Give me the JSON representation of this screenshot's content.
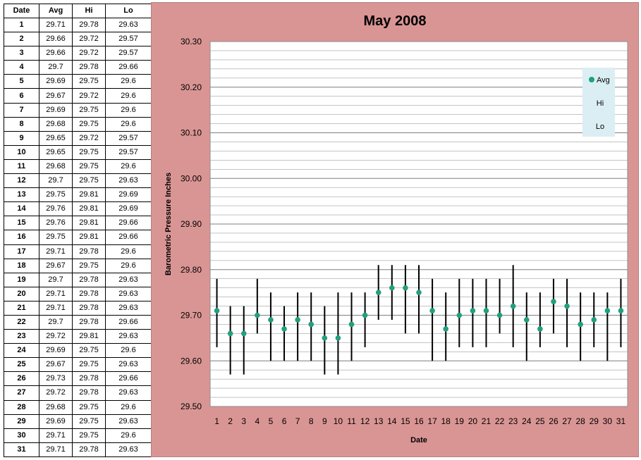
{
  "table": {
    "headers": [
      "Date",
      "Avg",
      "Hi",
      "Lo"
    ],
    "rows": [
      [
        "1",
        "29.71",
        "29.78",
        "29.63"
      ],
      [
        "2",
        "29.66",
        "29.72",
        "29.57"
      ],
      [
        "3",
        "29.66",
        "29.72",
        "29.57"
      ],
      [
        "4",
        "29.7",
        "29.78",
        "29.66"
      ],
      [
        "5",
        "29.69",
        "29.75",
        "29.6"
      ],
      [
        "6",
        "29.67",
        "29.72",
        "29.6"
      ],
      [
        "7",
        "29.69",
        "29.75",
        "29.6"
      ],
      [
        "8",
        "29.68",
        "29.75",
        "29.6"
      ],
      [
        "9",
        "29.65",
        "29.72",
        "29.57"
      ],
      [
        "10",
        "29.65",
        "29.75",
        "29.57"
      ],
      [
        "11",
        "29.68",
        "29.75",
        "29.6"
      ],
      [
        "12",
        "29.7",
        "29.75",
        "29.63"
      ],
      [
        "13",
        "29.75",
        "29.81",
        "29.69"
      ],
      [
        "14",
        "29.76",
        "29.81",
        "29.69"
      ],
      [
        "15",
        "29.76",
        "29.81",
        "29.66"
      ],
      [
        "16",
        "29.75",
        "29.81",
        "29.66"
      ],
      [
        "17",
        "29.71",
        "29.78",
        "29.6"
      ],
      [
        "18",
        "29.67",
        "29.75",
        "29.6"
      ],
      [
        "19",
        "29.7",
        "29.78",
        "29.63"
      ],
      [
        "20",
        "29.71",
        "29.78",
        "29.63"
      ],
      [
        "21",
        "29.71",
        "29.78",
        "29.63"
      ],
      [
        "22",
        "29.7",
        "29.78",
        "29.66"
      ],
      [
        "23",
        "29.72",
        "29.81",
        "29.63"
      ],
      [
        "24",
        "29.69",
        "29.75",
        "29.6"
      ],
      [
        "25",
        "29.67",
        "29.75",
        "29.63"
      ],
      [
        "26",
        "29.73",
        "29.78",
        "29.66"
      ],
      [
        "27",
        "29.72",
        "29.78",
        "29.63"
      ],
      [
        "28",
        "29.68",
        "29.75",
        "29.6"
      ],
      [
        "29",
        "29.69",
        "29.75",
        "29.63"
      ],
      [
        "30",
        "29.71",
        "29.75",
        "29.6"
      ],
      [
        "31",
        "29.71",
        "29.78",
        "29.63"
      ]
    ]
  },
  "chart_data": {
    "type": "scatter",
    "title": "May 2008",
    "xlabel": "Date",
    "ylabel": "Barometric Pressure Inches",
    "ylim": [
      29.5,
      30.3
    ],
    "y_tick_labels": [
      "29.50",
      "29.60",
      "29.70",
      "29.80",
      "29.90",
      "30.00",
      "30.10",
      "30.20",
      "30.30"
    ],
    "x": [
      1,
      2,
      3,
      4,
      5,
      6,
      7,
      8,
      9,
      10,
      11,
      12,
      13,
      14,
      15,
      16,
      17,
      18,
      19,
      20,
      21,
      22,
      23,
      24,
      25,
      26,
      27,
      28,
      29,
      30,
      31
    ],
    "series": [
      {
        "name": "Avg",
        "values": [
          29.71,
          29.66,
          29.66,
          29.7,
          29.69,
          29.67,
          29.69,
          29.68,
          29.65,
          29.65,
          29.68,
          29.7,
          29.75,
          29.76,
          29.76,
          29.75,
          29.71,
          29.67,
          29.7,
          29.71,
          29.71,
          29.7,
          29.72,
          29.69,
          29.67,
          29.73,
          29.72,
          29.68,
          29.69,
          29.71,
          29.71
        ]
      },
      {
        "name": "Hi",
        "values": [
          29.78,
          29.72,
          29.72,
          29.78,
          29.75,
          29.72,
          29.75,
          29.75,
          29.72,
          29.75,
          29.75,
          29.75,
          29.81,
          29.81,
          29.81,
          29.81,
          29.78,
          29.75,
          29.78,
          29.78,
          29.78,
          29.78,
          29.81,
          29.75,
          29.75,
          29.78,
          29.78,
          29.75,
          29.75,
          29.75,
          29.78
        ]
      },
      {
        "name": "Lo",
        "values": [
          29.63,
          29.57,
          29.57,
          29.66,
          29.6,
          29.6,
          29.6,
          29.6,
          29.57,
          29.57,
          29.6,
          29.63,
          29.69,
          29.69,
          29.66,
          29.66,
          29.6,
          29.6,
          29.63,
          29.63,
          29.63,
          29.66,
          29.63,
          29.6,
          29.63,
          29.66,
          29.63,
          29.6,
          29.63,
          29.6,
          29.63
        ]
      }
    ],
    "grid": true,
    "minor_grid": true,
    "legend": "right",
    "colors": {
      "panel_background": "#d99594",
      "plot_background": "#ffffff",
      "avg_marker": "#21a07e",
      "hi_lo_bar": "#000000",
      "legend_background": "#dbeef3",
      "grid": "#a0a0a0"
    }
  }
}
